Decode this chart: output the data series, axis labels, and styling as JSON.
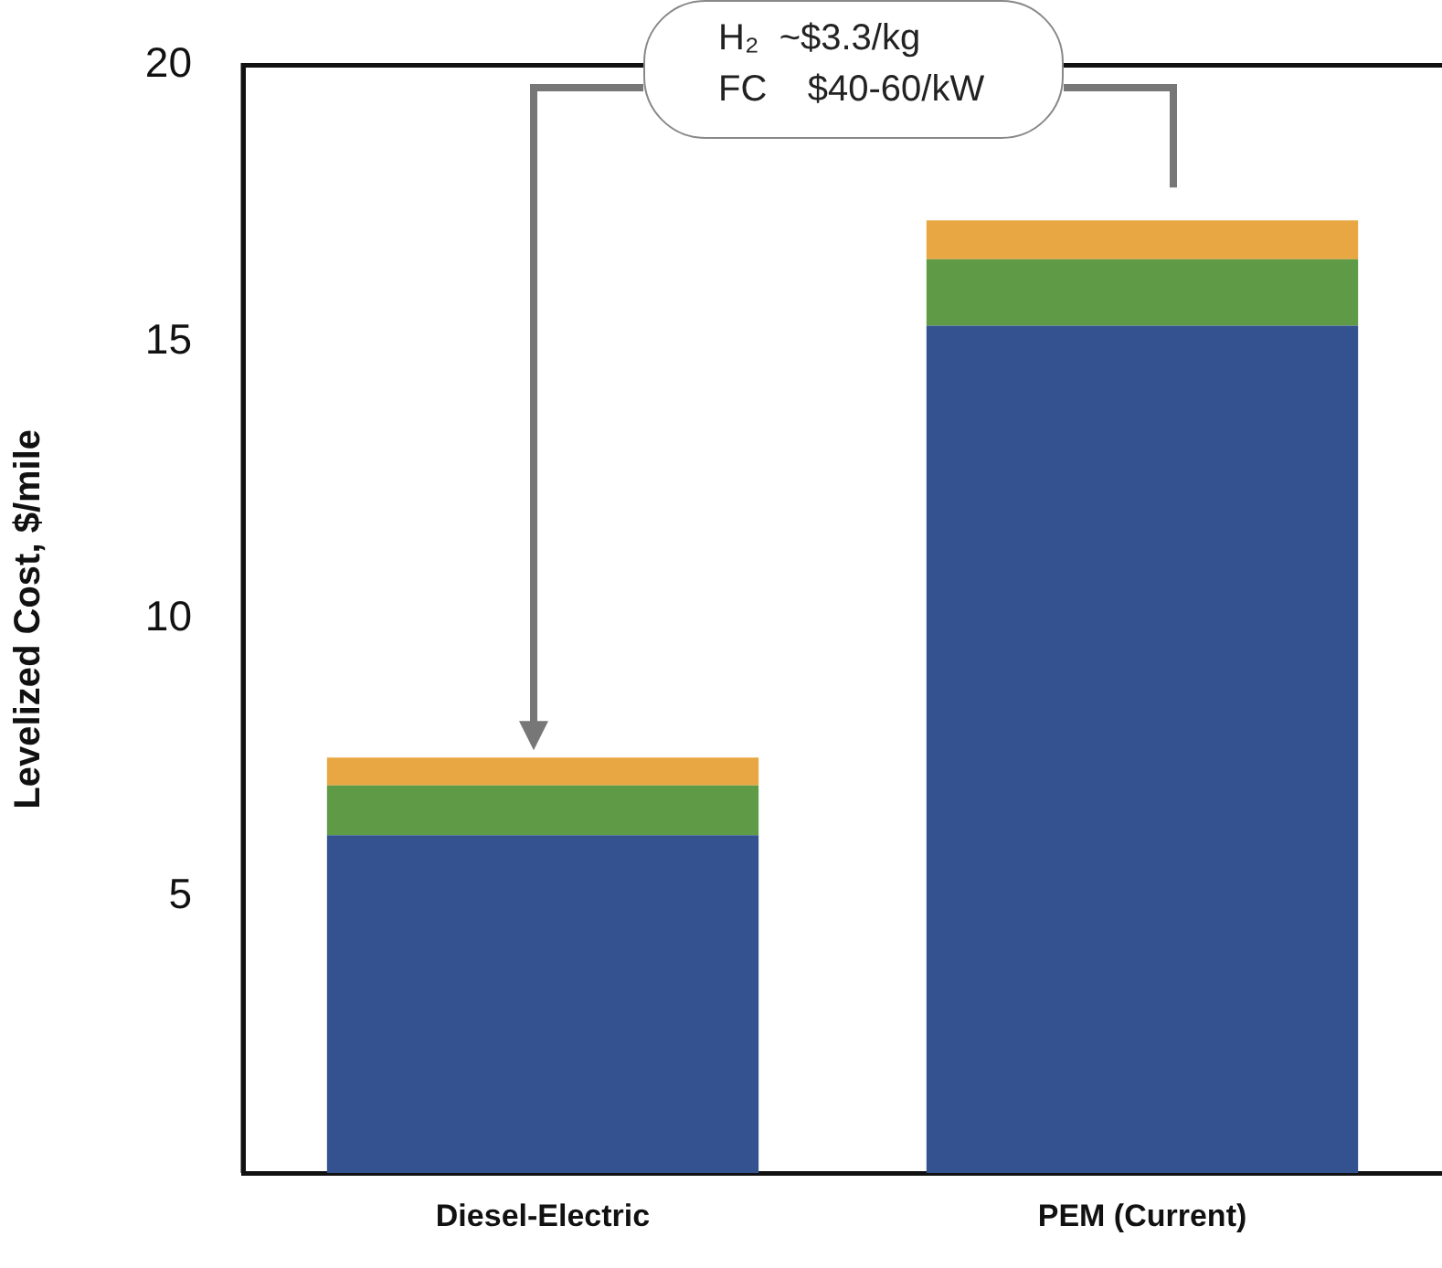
{
  "chart_data": {
    "type": "bar",
    "stacked": true,
    "categories": [
      "Diesel-Electric",
      "PEM (Current)"
    ],
    "series": [
      {
        "color": "#33528f",
        "values": [
          6.1,
          15.3
        ]
      },
      {
        "color": "#5f9a46",
        "values": [
          0.9,
          1.2
        ]
      },
      {
        "color": "#e9a743",
        "values": [
          0.5,
          0.7
        ]
      }
    ],
    "ylabel": "Levelized Cost, $/mile",
    "ylim": [
      0,
      20
    ],
    "yticks": [
      5,
      10,
      15,
      20
    ],
    "grid": false,
    "legend": false,
    "annotations": [
      "H₂  ~$3.3/kg",
      "FC    $40-60/kW"
    ]
  }
}
